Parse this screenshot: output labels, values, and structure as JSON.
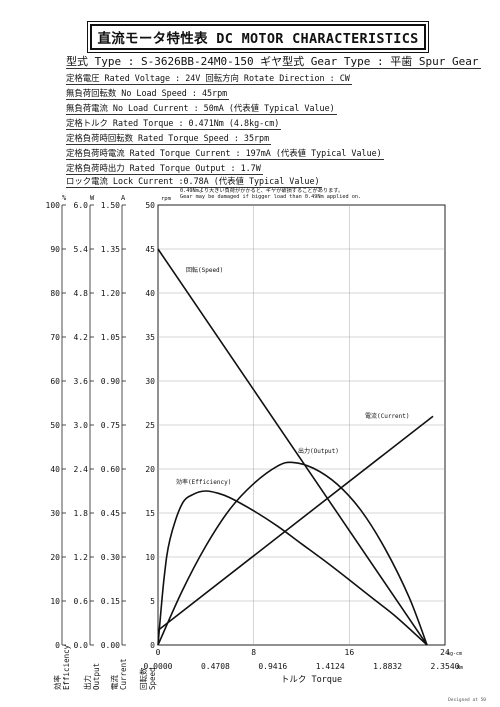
{
  "title": "直流モータ特性表 DC MOTOR CHARACTERISTICS",
  "specs": {
    "type_line": "型式 Type : S-3626BB-24M0-150  ギヤ型式 Gear Type : 平歯  Spur Gear",
    "rated_voltage": "定格電圧 Rated Voltage : 24V   回転方向 Rotate Direction : CW",
    "no_load_speed": "無負荷回転数 No Load Speed : 45rpm",
    "no_load_current": "無負荷電流 No Load Current : 50mA (代表値 Typical Value)",
    "rated_torque": "定格トルク Rated Torque : 0.471Nm (4.8kg-cm)",
    "rated_torque_speed": "定格負荷時回転数 Rated Torque Speed : 35rpm",
    "rated_torque_current": "定格負荷時電流 Rated Torque Current : 197mA (代表値 Typical Value)",
    "rated_torque_output": "定格負荷時出力 Rated Torque Output : 1.7W",
    "lock_current": "ロック電流 Lock Current :0.78A (代表値 Typical Value)"
  },
  "warning_jp": "0.49Nmより大きい負荷がかかると、ギヤが破損することがあります。",
  "warning_en": "Gear may be damaged if bigger load than 0.49Nm applied on.",
  "footer": "Designed at 50",
  "chart_data": {
    "type": "line",
    "axis_headers": {
      "eff": "%",
      "out": "W",
      "cur": "A",
      "speed": "rpm"
    },
    "y_axes": {
      "efficiency_ticks": [
        "100",
        "90",
        "80",
        "70",
        "60",
        "50",
        "40",
        "30",
        "20",
        "10",
        "0"
      ],
      "output_ticks": [
        "6.0",
        "5.4",
        "4.8",
        "4.2",
        "3.6",
        "3.0",
        "2.4",
        "1.8",
        "1.2",
        "0.6",
        "0.0"
      ],
      "current_ticks": [
        "1.50",
        "1.35",
        "1.20",
        "1.05",
        "0.90",
        "0.75",
        "0.60",
        "0.45",
        "0.30",
        "0.15",
        "0.00"
      ],
      "speed_ticks": [
        "50",
        "45",
        "40",
        "35",
        "30",
        "25",
        "20",
        "15",
        "10",
        "5",
        "0"
      ]
    },
    "axis_names": {
      "eff_jp": "効率",
      "eff_en": "Efficiency",
      "out_jp": "出力",
      "out_en": "Output",
      "cur_jp": "電流",
      "cur_en": "Current",
      "speed_jp": "回転数",
      "speed_en": "Speed"
    },
    "x_ticks_kgcm": [
      "0",
      "8",
      "16",
      "24"
    ],
    "x_unit_kgcm": "kg-cm",
    "x_ticks_nm": [
      "0.0000",
      "0.4708",
      "0.9416",
      "1.4124",
      "1.8832",
      "2.3540"
    ],
    "x_unit_nm": "Nm",
    "xlabel": "トルク Torque",
    "xlim_kgcm": [
      0,
      24
    ],
    "ylim_speed": [
      0,
      50
    ],
    "grid": true,
    "series": [
      {
        "name": "回転(Speed)",
        "x": [
          0,
          22.5
        ],
        "y": [
          45,
          0
        ]
      },
      {
        "name": "電流(Current)",
        "x": [
          0,
          23
        ],
        "y": [
          0.05,
          0.78
        ]
      },
      {
        "name": "出力(Output)",
        "x": [
          0,
          2,
          4,
          6,
          8,
          10,
          11.25,
          13,
          15,
          17,
          19,
          21,
          22.5
        ],
        "y": [
          0,
          0.73,
          1.35,
          1.85,
          2.2,
          2.44,
          2.49,
          2.41,
          2.19,
          1.83,
          1.31,
          0.65,
          0
        ]
      },
      {
        "name": "効率(Efficiency)",
        "x": [
          0,
          0.5,
          1,
          2,
          3,
          4,
          5,
          6,
          8,
          10,
          12,
          14,
          16,
          18,
          20,
          22.5
        ],
        "y": [
          0,
          15,
          24,
          32,
          34.3,
          35,
          34.5,
          33.5,
          30.5,
          27,
          23,
          19,
          14.8,
          10.5,
          6.2,
          0
        ]
      }
    ]
  }
}
